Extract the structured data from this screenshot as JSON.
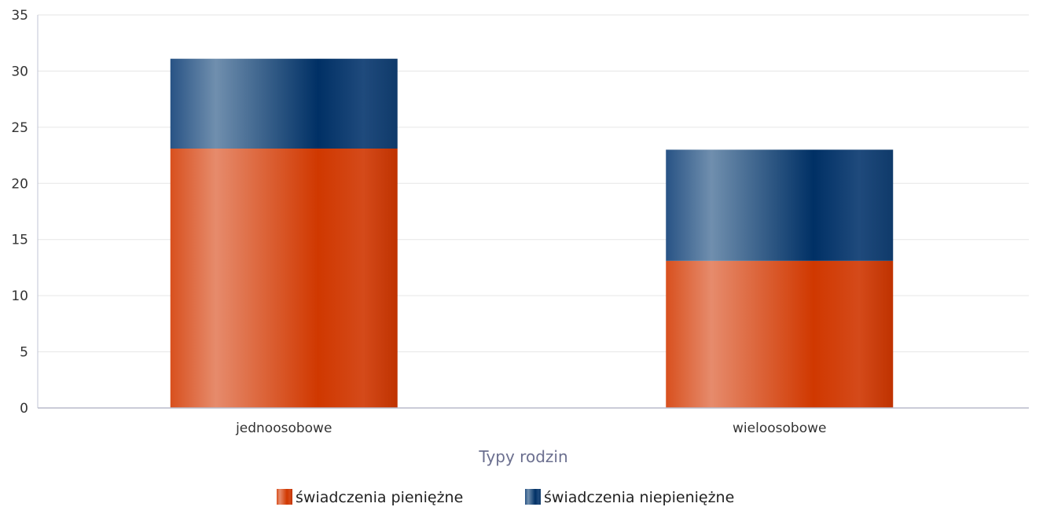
{
  "chart_data": {
    "type": "bar",
    "stacked": true,
    "categories": [
      "jednoosobowe",
      "wieloosobowe"
    ],
    "series": [
      {
        "name": "świadczenia pieniężne",
        "values": [
          23.1,
          13.1
        ],
        "color": "#d23c0a"
      },
      {
        "name": "świadczenia niepieniężne",
        "values": [
          8.0,
          9.9
        ],
        "color": "#0f3a6a"
      }
    ],
    "xlabel": "Typy rodzin",
    "ylabel": "",
    "ylim": [
      0,
      35
    ],
    "yticks": [
      0,
      5,
      10,
      15,
      20,
      25,
      30,
      35
    ],
    "grid": true,
    "legend": "bottom-center"
  }
}
